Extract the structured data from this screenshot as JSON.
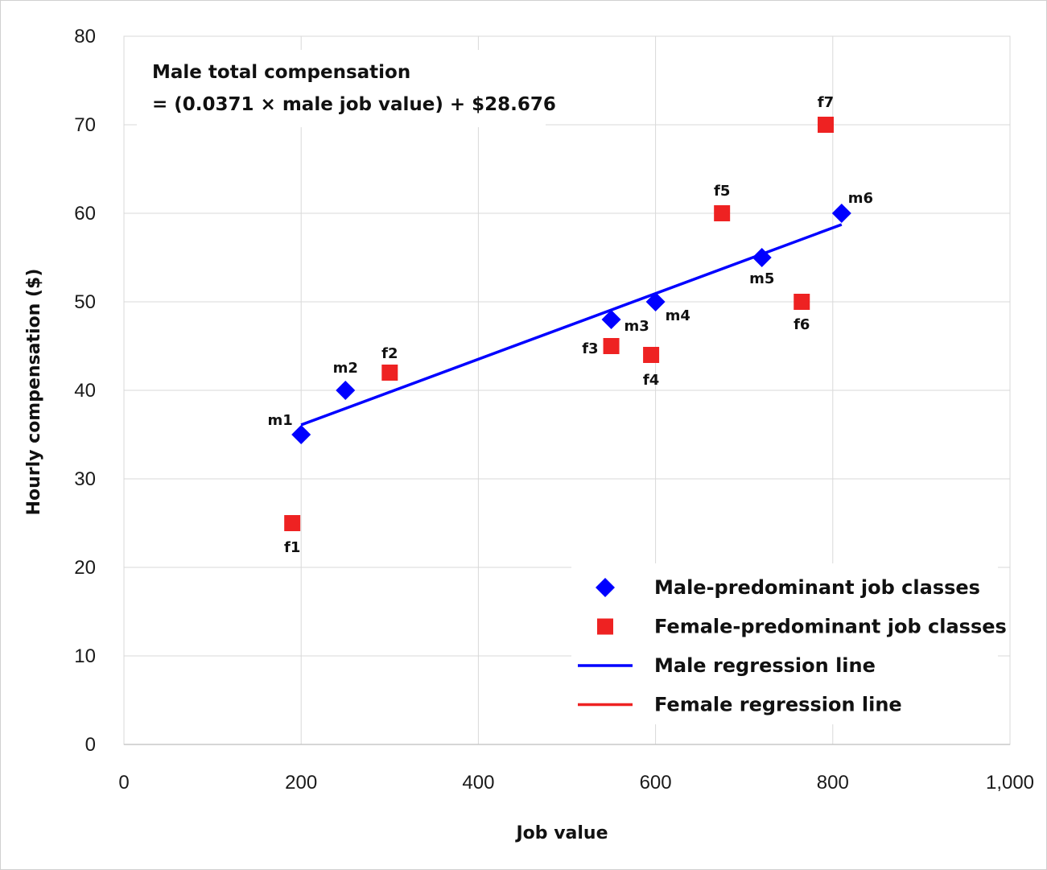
{
  "chart_data": {
    "type": "scatter",
    "xlabel": "Job value",
    "ylabel": "Hourly compensation ($)",
    "xlim": [
      0,
      1000
    ],
    "ylim": [
      0,
      80
    ],
    "x_ticks": [
      0,
      200,
      400,
      600,
      800,
      1000
    ],
    "x_tick_labels": [
      "0",
      "200",
      "400",
      "600",
      "800",
      "1,000"
    ],
    "y_ticks": [
      0,
      10,
      20,
      30,
      40,
      50,
      60,
      70,
      80
    ],
    "y_tick_labels": [
      "0",
      "10",
      "20",
      "30",
      "40",
      "50",
      "60",
      "70",
      "80"
    ],
    "grid": true,
    "legend_position": "bottom-right",
    "series": [
      {
        "name": "Male-predominant job classes",
        "marker": "diamond",
        "color": "#0000ff",
        "points": [
          {
            "label": "m1",
            "x": 200,
            "y": 35
          },
          {
            "label": "m2",
            "x": 250,
            "y": 40
          },
          {
            "label": "m3",
            "x": 550,
            "y": 48
          },
          {
            "label": "m4",
            "x": 600,
            "y": 50
          },
          {
            "label": "m5",
            "x": 720,
            "y": 55
          },
          {
            "label": "m6",
            "x": 810,
            "y": 60
          }
        ]
      },
      {
        "name": "Female-predominant job classes",
        "marker": "square",
        "color": "#ee2222",
        "points": [
          {
            "label": "f1",
            "x": 190,
            "y": 25
          },
          {
            "label": "f2",
            "x": 300,
            "y": 42
          },
          {
            "label": "f3",
            "x": 550,
            "y": 45
          },
          {
            "label": "f4",
            "x": 595,
            "y": 44
          },
          {
            "label": "f5",
            "x": 675,
            "y": 60
          },
          {
            "label": "f6",
            "x": 765,
            "y": 50
          },
          {
            "label": "f7",
            "x": 792,
            "y": 70
          }
        ]
      }
    ],
    "regression_lines": [
      {
        "name": "Male regression line",
        "color": "#0000ff",
        "slope": 0.0371,
        "intercept": 28.676,
        "x_range": [
          200,
          810
        ]
      },
      {
        "name": "Female regression line",
        "color": "#ee2222"
      }
    ],
    "annotation": {
      "line1": "Male total compensation",
      "line2": "= (0.0371 × male job value) + $28.676"
    }
  }
}
